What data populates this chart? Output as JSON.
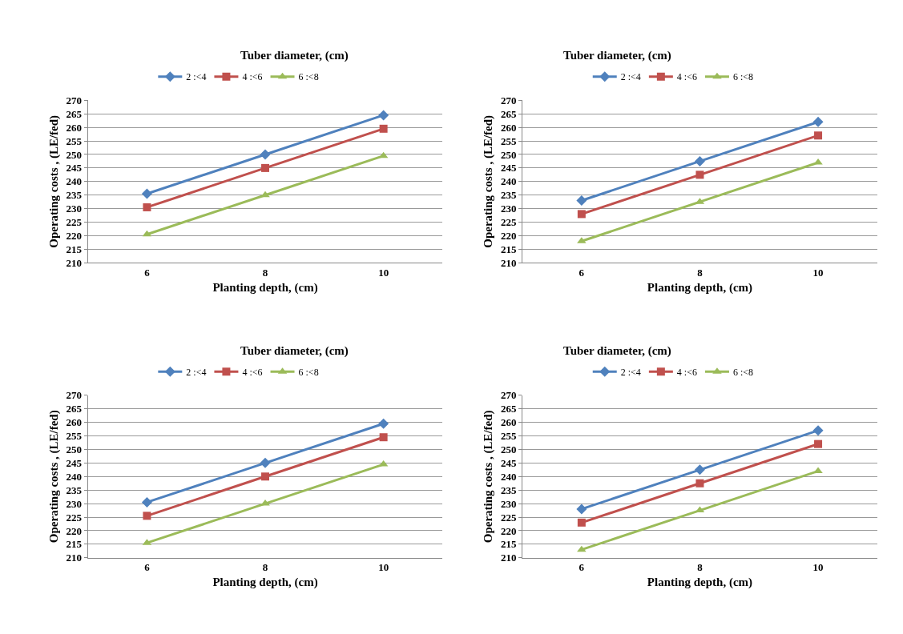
{
  "chart_data": [
    {
      "type": "line",
      "title": "Tuber diameter, (cm)",
      "xlabel": "Planting depth, (cm)",
      "ylabel": "Operating costs , (LE/fed)",
      "categories": [
        "6",
        "8",
        "10"
      ],
      "ylim": [
        210,
        270
      ],
      "yticks": [
        210,
        215,
        220,
        225,
        230,
        235,
        240,
        245,
        250,
        255,
        260,
        265,
        270
      ],
      "grid": "y",
      "legend": "top",
      "series": [
        {
          "name": "2 :<4",
          "color": "#4f81bd",
          "marker": "diamond",
          "values": [
            235.5,
            250,
            264.5
          ]
        },
        {
          "name": "4 :<6",
          "color": "#c0504d",
          "marker": "square",
          "values": [
            230.5,
            245,
            259.5
          ]
        },
        {
          "name": "6 :<8",
          "color": "#9bbb59",
          "marker": "triangle",
          "values": [
            220.5,
            235,
            249.5
          ]
        }
      ]
    },
    {
      "type": "line",
      "title": "Tuber diameter, (cm)",
      "xlabel": "Planting depth, (cm)",
      "ylabel": "Operating costs , (LE/fed)",
      "categories": [
        "6",
        "8",
        "10"
      ],
      "ylim": [
        210,
        270
      ],
      "yticks": [
        210,
        215,
        220,
        225,
        230,
        235,
        240,
        245,
        250,
        255,
        260,
        265,
        270
      ],
      "grid": "y",
      "legend": "top",
      "series": [
        {
          "name": "2 :<4",
          "color": "#4f81bd",
          "marker": "diamond",
          "values": [
            233,
            247.5,
            262
          ]
        },
        {
          "name": "4 :<6",
          "color": "#c0504d",
          "marker": "square",
          "values": [
            228,
            242.5,
            257
          ]
        },
        {
          "name": "6 :<8",
          "color": "#9bbb59",
          "marker": "triangle",
          "values": [
            218,
            232.5,
            247
          ]
        }
      ]
    },
    {
      "type": "line",
      "title": "Tuber diameter, (cm)",
      "xlabel": "Planting depth, (cm)",
      "ylabel": "Operating costs , (LE/fed)",
      "categories": [
        "6",
        "8",
        "10"
      ],
      "ylim": [
        210,
        270
      ],
      "yticks": [
        210,
        215,
        220,
        225,
        230,
        235,
        240,
        245,
        250,
        255,
        260,
        265,
        270
      ],
      "grid": "y",
      "legend": "top",
      "series": [
        {
          "name": "2 :<4",
          "color": "#4f81bd",
          "marker": "diamond",
          "values": [
            230.5,
            245,
            259.5
          ]
        },
        {
          "name": "4 :<6",
          "color": "#c0504d",
          "marker": "square",
          "values": [
            225.5,
            240,
            254.5
          ]
        },
        {
          "name": "6 :<8",
          "color": "#9bbb59",
          "marker": "triangle",
          "values": [
            215.5,
            230,
            244.5
          ]
        }
      ]
    },
    {
      "type": "line",
      "title": "Tuber diameter, (cm)",
      "xlabel": "Planting depth, (cm)",
      "ylabel": "Operating costs , (LE/fed)",
      "categories": [
        "6",
        "8",
        "10"
      ],
      "ylim": [
        210,
        270
      ],
      "yticks": [
        210,
        215,
        220,
        225,
        230,
        235,
        240,
        245,
        250,
        255,
        260,
        265,
        270
      ],
      "grid": "y",
      "legend": "top",
      "series": [
        {
          "name": "2 :<4",
          "color": "#4f81bd",
          "marker": "diamond",
          "values": [
            228,
            242.5,
            257
          ]
        },
        {
          "name": "4 :<6",
          "color": "#c0504d",
          "marker": "square",
          "values": [
            223,
            237.5,
            252
          ]
        },
        {
          "name": "6 :<8",
          "color": "#9bbb59",
          "marker": "triangle",
          "values": [
            213,
            227.5,
            242
          ]
        }
      ]
    }
  ]
}
